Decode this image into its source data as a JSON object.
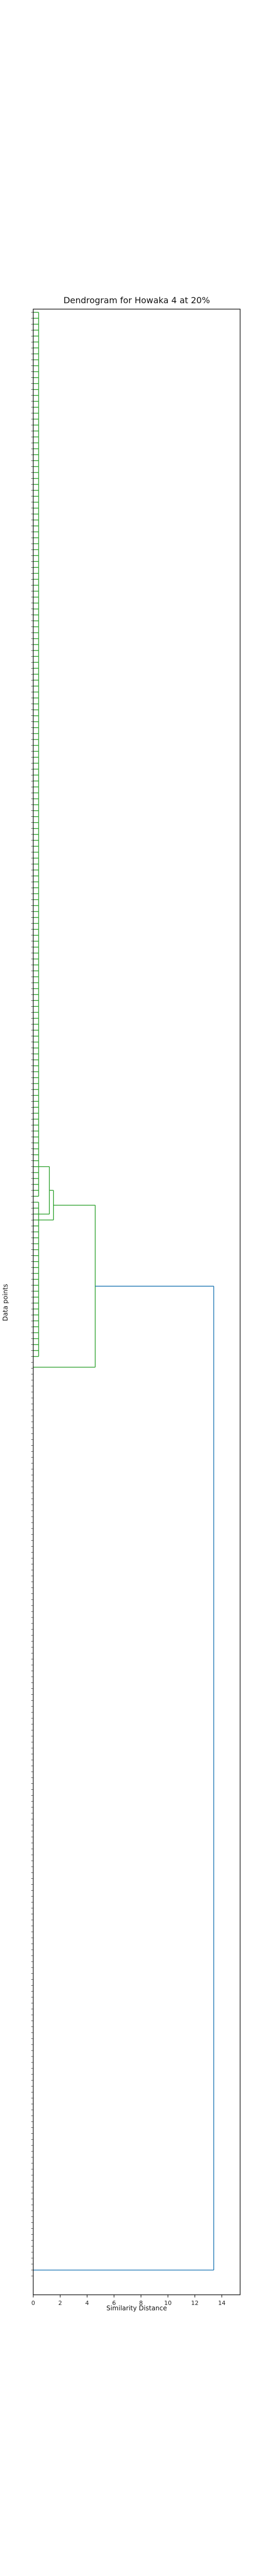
{
  "chart_data": {
    "type": "dendrogram",
    "title": "Dendrogram for Howaka 4 at 20%",
    "xlabel": "Similarity Distance",
    "ylabel": "Data points",
    "xlim": [
      0,
      15
    ],
    "x_ticks": [
      0,
      2,
      4,
      6,
      8,
      10,
      12,
      14
    ],
    "colors": {
      "cluster": "#2ca02c",
      "root": "#1f77b4",
      "axes": "#000000"
    },
    "leaf_counts": {
      "green_block_top": 150,
      "green_block_bottom": 27,
      "unlinked": 155
    },
    "merges": [
      {
        "height": 0.4,
        "cluster": "green_block_top",
        "color": "#2ca02c"
      },
      {
        "height": 1.2,
        "cluster": "green_block_bottom_left",
        "color": "#2ca02c"
      },
      {
        "height": 1.5,
        "cluster": "green_block_bottom_right",
        "color": "#2ca02c"
      },
      {
        "height": 4.6,
        "cluster": "green",
        "color": "#2ca02c"
      },
      {
        "height": 13.4,
        "cluster": "root",
        "color": "#1f77b4"
      }
    ],
    "leaf_labels_note_hidden": true
  }
}
